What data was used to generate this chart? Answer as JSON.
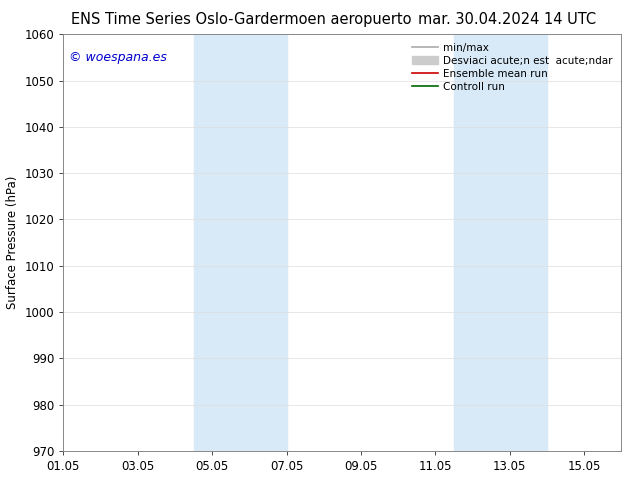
{
  "title_left": "ENS Time Series Oslo-Gardermoen aeropuerto",
  "title_right": "mar. 30.04.2024 14 UTC",
  "ylabel": "Surface Pressure (hPa)",
  "ylim": [
    970,
    1060
  ],
  "yticks": [
    970,
    980,
    990,
    1000,
    1010,
    1020,
    1030,
    1040,
    1050,
    1060
  ],
  "xtick_labels": [
    "01.05",
    "03.05",
    "05.05",
    "07.05",
    "09.05",
    "11.05",
    "13.05",
    "15.05"
  ],
  "xtick_positions": [
    0,
    2,
    4,
    6,
    8,
    10,
    12,
    14
  ],
  "xlim": [
    0,
    15
  ],
  "blue_bands": [
    {
      "start": 3.5,
      "end": 6.0
    },
    {
      "start": 10.5,
      "end": 13.0
    }
  ],
  "band_color": "#d8eaf8",
  "legend_items": [
    {
      "label": "min/max",
      "color": "#aaaaaa",
      "lw": 1.2,
      "style": "line"
    },
    {
      "label": "Desviaci acute;n est  acute;ndar",
      "color": "#cccccc",
      "style": "fill"
    },
    {
      "label": "Ensemble mean run",
      "color": "#cc0000",
      "lw": 1.2,
      "style": "line"
    },
    {
      "label": "Controll run",
      "color": "#006600",
      "lw": 1.2,
      "style": "line"
    }
  ],
  "watermark": "© woespana.es",
  "watermark_color": "#0000cc",
  "watermark_fontsize": 9,
  "bg_color": "#ffffff",
  "grid_color": "#dddddd",
  "title_fontsize": 10.5,
  "axis_fontsize": 8.5,
  "legend_fontsize": 7.5
}
